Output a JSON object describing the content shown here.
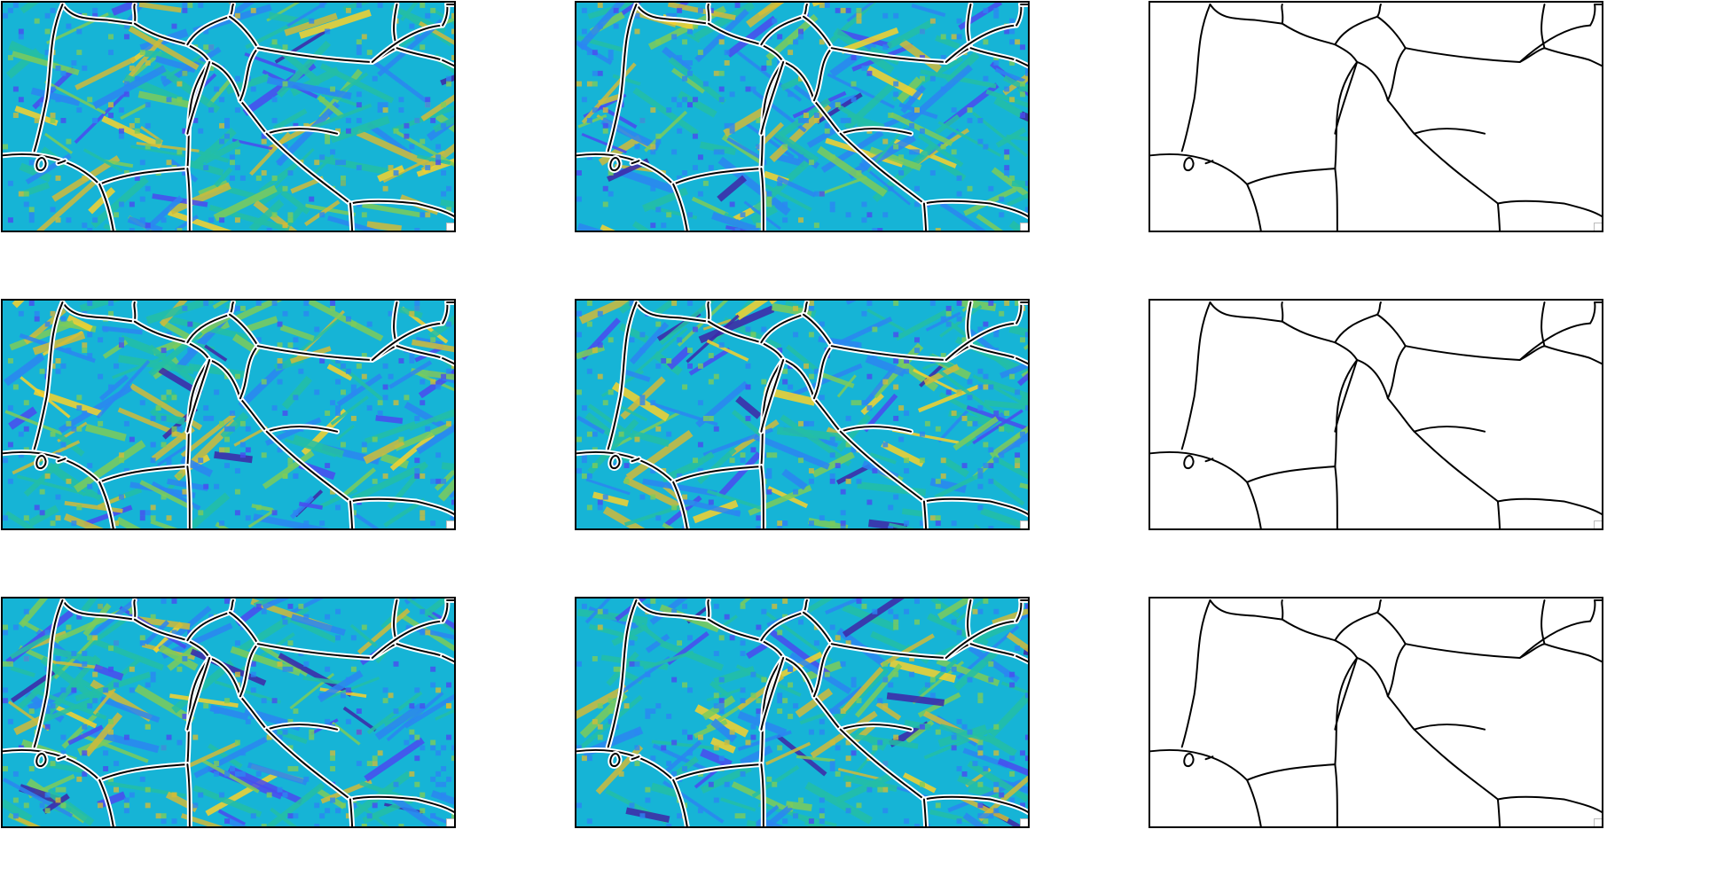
{
  "figure": {
    "rows": 3,
    "columns": 3,
    "panels": [
      {
        "row": 1,
        "col": 1,
        "kind": "colormap-with-boundaries",
        "seed": 11
      },
      {
        "row": 1,
        "col": 2,
        "kind": "colormap-with-boundaries",
        "seed": 23
      },
      {
        "row": 1,
        "col": 3,
        "kind": "boundaries-only",
        "seed": 0
      },
      {
        "row": 2,
        "col": 1,
        "kind": "colormap-with-boundaries",
        "seed": 37
      },
      {
        "row": 2,
        "col": 2,
        "kind": "colormap-with-boundaries",
        "seed": 41
      },
      {
        "row": 2,
        "col": 3,
        "kind": "boundaries-only",
        "seed": 0
      },
      {
        "row": 3,
        "col": 1,
        "kind": "colormap-with-boundaries",
        "seed": 53
      },
      {
        "row": 3,
        "col": 2,
        "kind": "colormap-with-boundaries",
        "seed": 67
      },
      {
        "row": 3,
        "col": 3,
        "kind": "boundaries-only",
        "seed": 0
      }
    ],
    "colormap": [
      "#3e26a8",
      "#4a4bf0",
      "#2c86f2",
      "#16b4d6",
      "#24bfa5",
      "#7dcc5a",
      "#d0bb3a",
      "#f8d22c",
      "#f9fb0e"
    ],
    "boundary_color": "#000000"
  }
}
